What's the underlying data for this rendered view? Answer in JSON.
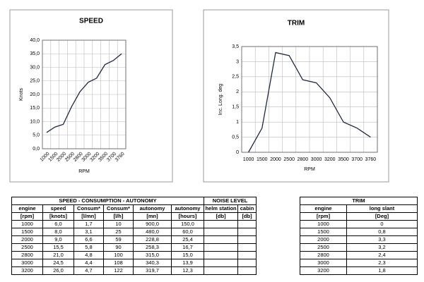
{
  "chart_data": [
    {
      "type": "line",
      "title": "SPEED",
      "xlabel": "RPM",
      "ylabel": "Knots",
      "color": "#1f2a44",
      "grid": true,
      "categories": [
        "1000",
        "1500",
        "2000",
        "2500",
        "2800",
        "3000",
        "3200",
        "3500",
        "3700",
        "3760"
      ],
      "values": [
        6.0,
        8.0,
        9.0,
        15.5,
        21.0,
        24.5,
        26.0,
        31.0,
        32.5,
        35.0
      ],
      "ylim": [
        0,
        40
      ],
      "yticks": [
        {
          "value": 0,
          "label": "0,0"
        },
        {
          "value": 5,
          "label": "5,0"
        },
        {
          "value": 10,
          "label": "10,0"
        },
        {
          "value": 15,
          "label": "15,0"
        },
        {
          "value": 20,
          "label": "20,0"
        },
        {
          "value": 25,
          "label": "25,0"
        },
        {
          "value": 30,
          "label": "30,0"
        },
        {
          "value": 35,
          "label": "35,0"
        },
        {
          "value": 40,
          "label": "40,0"
        }
      ]
    },
    {
      "type": "line",
      "title": "TRIM",
      "xlabel": "RPM",
      "ylabel": "Inc. Long. deg",
      "color": "#1f2a44",
      "grid": true,
      "categories": [
        "1000",
        "1500",
        "2000",
        "2500",
        "2800",
        "3000",
        "3200",
        "3500",
        "3700",
        "3760"
      ],
      "values": [
        0,
        0.8,
        3.3,
        3.2,
        2.4,
        2.3,
        1.8,
        1.0,
        0.8,
        0.5
      ],
      "ylim": [
        0,
        3.5
      ],
      "yticks": [
        0,
        {
          "value": 0.5,
          "label": "0,5"
        },
        1,
        {
          "value": 1.5,
          "label": "1,5"
        },
        2,
        {
          "value": 2.5,
          "label": "2,5"
        },
        3,
        {
          "value": 3.5,
          "label": "3,5"
        }
      ]
    }
  ],
  "tables": {
    "main": {
      "groups": [
        "SPEED -  CONSUMPTION - AUTONOMY",
        "NOISE LEVEL"
      ],
      "header": [
        [
          "engine",
          "speed",
          "Consum*",
          "Consum*",
          "autonomy",
          "autonomy",
          "helm station",
          "cabin"
        ],
        [
          "[rpm]",
          "[knots]",
          "[l/mn]",
          "[l/h]",
          "[mn]",
          "[hours]",
          "[db]",
          "[db]"
        ]
      ],
      "rows": [
        [
          "1000",
          "6,0",
          "1,7",
          "10",
          "900,0",
          "150,0"
        ],
        [
          "1500",
          "8,0",
          "3,1",
          "25",
          "480,0",
          "60,0"
        ],
        [
          "2000",
          "9,0",
          "6,6",
          "59",
          "228,8",
          "25,4"
        ],
        [
          "2500",
          "15,5",
          "5,8",
          "90",
          "258,3",
          "16,7"
        ],
        [
          "2800",
          "21,0",
          "4,8",
          "100",
          "315,0",
          "15,0"
        ],
        [
          "3000",
          "24,5",
          "4,4",
          "108",
          "340,3",
          "13,9"
        ],
        [
          "3200",
          "26,0",
          "4,7",
          "122",
          "319,7",
          "12,3"
        ]
      ]
    },
    "trim": {
      "title": "TRIM",
      "header": [
        [
          "engine",
          "long slant"
        ],
        [
          "[rpm]",
          "[Deg]"
        ]
      ],
      "rows": [
        [
          "1000",
          "0"
        ],
        [
          "1500",
          "0,8"
        ],
        [
          "2000",
          "3,3"
        ],
        [
          "2500",
          "3,2"
        ],
        [
          "2800",
          "2,4"
        ],
        [
          "3000",
          "2,3"
        ],
        [
          "3200",
          "1,8"
        ]
      ]
    }
  }
}
